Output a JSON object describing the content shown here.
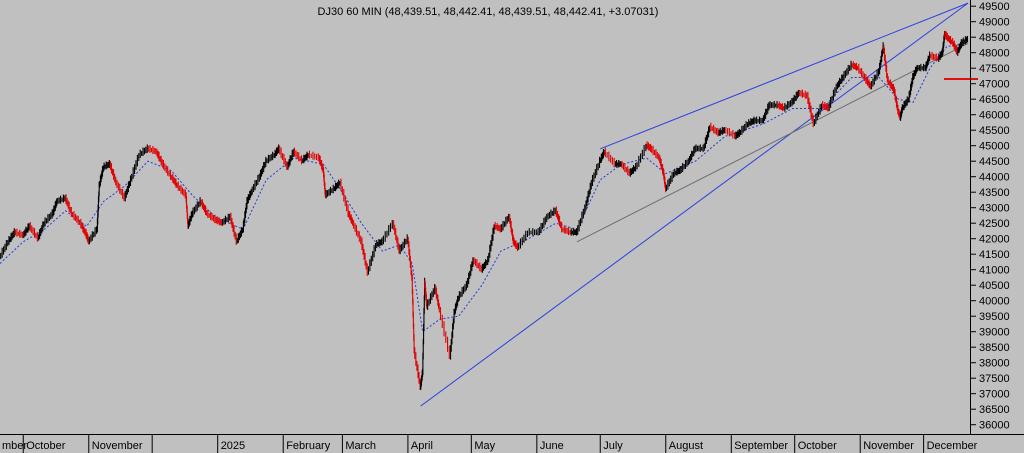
{
  "chart_data": {
    "type": "line",
    "title": "DJ30 60 MIN (48,439.51, 48,442.41, 48,439.51, 48,442.41, +3.07031)",
    "ylim": [
      35700,
      49700
    ],
    "y_ticks": [
      36000,
      36500,
      37000,
      37500,
      38000,
      38500,
      39000,
      39500,
      40000,
      40500,
      41000,
      41500,
      42000,
      42500,
      43000,
      43500,
      44000,
      44500,
      45000,
      45500,
      46000,
      46500,
      47000,
      47500,
      48000,
      48500,
      49000,
      49500
    ],
    "y_tick_labels": [
      "36000",
      "36500",
      "37000",
      "37500",
      "38000",
      "38500",
      "39000",
      "39500",
      "40000",
      "40500",
      "41000",
      "41500",
      "42000",
      "42500",
      "43000",
      "43500",
      "44000",
      "44500",
      "45000",
      "45500",
      "46000",
      "46500",
      "47000",
      "47500",
      "48000",
      "48500",
      "49000",
      "49500"
    ],
    "x_domain": [
      "2024-09-20",
      "2025-12-22"
    ],
    "x_ticks": [
      {
        "date": "2024-09-01",
        "label": "mber"
      },
      {
        "date": "2024-10-01",
        "label": "October"
      },
      {
        "date": "2024-11-01",
        "label": "November"
      },
      {
        "date": "2024-12-01",
        "label": ""
      },
      {
        "date": "2025-01-01",
        "label": "2025"
      },
      {
        "date": "2025-02-01",
        "label": "February"
      },
      {
        "date": "2025-03-01",
        "label": "March"
      },
      {
        "date": "2025-04-01",
        "label": "April"
      },
      {
        "date": "2025-05-01",
        "label": "May"
      },
      {
        "date": "2025-06-01",
        "label": "June"
      },
      {
        "date": "2025-07-01",
        "label": "July"
      },
      {
        "date": "2025-08-01",
        "label": "August"
      },
      {
        "date": "2025-09-01",
        "label": "September"
      },
      {
        "date": "2025-10-01",
        "label": "October"
      },
      {
        "date": "2025-11-01",
        "label": "November"
      },
      {
        "date": "2025-12-01",
        "label": "December"
      }
    ],
    "grid": false,
    "series": [
      {
        "style": "price",
        "color": "#000000",
        "data": [
          [
            "2024-09-20",
            41400
          ],
          [
            "2024-09-24",
            41900
          ],
          [
            "2024-09-27",
            42200
          ],
          [
            "2024-10-01",
            42100
          ],
          [
            "2024-10-04",
            42400
          ],
          [
            "2024-10-08",
            42000
          ],
          [
            "2024-10-11",
            42500
          ],
          [
            "2024-10-15",
            42800
          ],
          [
            "2024-10-17",
            43200
          ],
          [
            "2024-10-21",
            43300
          ],
          [
            "2024-10-24",
            42800
          ],
          [
            "2024-10-28",
            42500
          ],
          [
            "2024-10-31",
            42100
          ],
          [
            "2024-11-01",
            41900
          ],
          [
            "2024-11-05",
            42300
          ],
          [
            "2024-11-06",
            43700
          ],
          [
            "2024-11-08",
            44300
          ],
          [
            "2024-11-11",
            44400
          ],
          [
            "2024-11-14",
            43800
          ],
          [
            "2024-11-18",
            43300
          ],
          [
            "2024-11-21",
            43900
          ],
          [
            "2024-11-25",
            44700
          ],
          [
            "2024-11-29",
            44900
          ],
          [
            "2024-12-03",
            44800
          ],
          [
            "2024-12-06",
            44400
          ],
          [
            "2024-12-10",
            44000
          ],
          [
            "2024-12-13",
            43700
          ],
          [
            "2024-12-17",
            43400
          ],
          [
            "2024-12-18",
            42400
          ],
          [
            "2024-12-20",
            42800
          ],
          [
            "2024-12-24",
            43200
          ],
          [
            "2024-12-27",
            42800
          ],
          [
            "2024-12-31",
            42600
          ],
          [
            "2025-01-03",
            42500
          ],
          [
            "2025-01-07",
            42700
          ],
          [
            "2025-01-10",
            41900
          ],
          [
            "2025-01-13",
            42300
          ],
          [
            "2025-01-15",
            43200
          ],
          [
            "2025-01-17",
            43500
          ],
          [
            "2025-01-21",
            44000
          ],
          [
            "2025-01-24",
            44500
          ],
          [
            "2025-01-28",
            44700
          ],
          [
            "2025-01-30",
            44900
          ],
          [
            "2025-02-03",
            44300
          ],
          [
            "2025-02-06",
            44800
          ],
          [
            "2025-02-10",
            44500
          ],
          [
            "2025-02-13",
            44700
          ],
          [
            "2025-02-18",
            44600
          ],
          [
            "2025-02-20",
            44200
          ],
          [
            "2025-02-21",
            43400
          ],
          [
            "2025-02-25",
            43600
          ],
          [
            "2025-02-28",
            43800
          ],
          [
            "2025-03-04",
            42800
          ],
          [
            "2025-03-06",
            42500
          ],
          [
            "2025-03-10",
            41900
          ],
          [
            "2025-03-13",
            40900
          ],
          [
            "2025-03-17",
            41800
          ],
          [
            "2025-03-20",
            41900
          ],
          [
            "2025-03-25",
            42500
          ],
          [
            "2025-03-28",
            41600
          ],
          [
            "2025-04-01",
            42000
          ],
          [
            "2025-04-03",
            40700
          ],
          [
            "2025-04-04",
            38400
          ],
          [
            "2025-04-07",
            37200
          ],
          [
            "2025-04-08",
            37700
          ],
          [
            "2025-04-09",
            40600
          ],
          [
            "2025-04-10",
            39800
          ],
          [
            "2025-04-14",
            40400
          ],
          [
            "2025-04-16",
            39700
          ],
          [
            "2025-04-21",
            38200
          ],
          [
            "2025-04-23",
            39600
          ],
          [
            "2025-04-25",
            40100
          ],
          [
            "2025-04-29",
            40500
          ],
          [
            "2025-05-02",
            41300
          ],
          [
            "2025-05-06",
            41000
          ],
          [
            "2025-05-09",
            41300
          ],
          [
            "2025-05-12",
            42400
          ],
          [
            "2025-05-15",
            42300
          ],
          [
            "2025-05-19",
            42700
          ],
          [
            "2025-05-21",
            41900
          ],
          [
            "2025-05-23",
            41700
          ],
          [
            "2025-05-28",
            42200
          ],
          [
            "2025-06-02",
            42200
          ],
          [
            "2025-06-06",
            42700
          ],
          [
            "2025-06-10",
            42900
          ],
          [
            "2025-06-13",
            42300
          ],
          [
            "2025-06-17",
            42200
          ],
          [
            "2025-06-20",
            42200
          ],
          [
            "2025-06-24",
            43000
          ],
          [
            "2025-06-27",
            43800
          ],
          [
            "2025-07-01",
            44500
          ],
          [
            "2025-07-03",
            44800
          ],
          [
            "2025-07-08",
            44400
          ],
          [
            "2025-07-11",
            44400
          ],
          [
            "2025-07-15",
            44100
          ],
          [
            "2025-07-18",
            44300
          ],
          [
            "2025-07-23",
            45000
          ],
          [
            "2025-07-25",
            44900
          ],
          [
            "2025-07-29",
            44600
          ],
          [
            "2025-07-31",
            44100
          ],
          [
            "2025-08-01",
            43600
          ],
          [
            "2025-08-05",
            44100
          ],
          [
            "2025-08-08",
            44200
          ],
          [
            "2025-08-12",
            44500
          ],
          [
            "2025-08-15",
            44900
          ],
          [
            "2025-08-19",
            44900
          ],
          [
            "2025-08-22",
            45600
          ],
          [
            "2025-08-26",
            45400
          ],
          [
            "2025-08-29",
            45500
          ],
          [
            "2025-09-03",
            45300
          ],
          [
            "2025-09-05",
            45400
          ],
          [
            "2025-09-09",
            45700
          ],
          [
            "2025-09-12",
            45800
          ],
          [
            "2025-09-16",
            45800
          ],
          [
            "2025-09-19",
            46300
          ],
          [
            "2025-09-23",
            46300
          ],
          [
            "2025-09-26",
            46200
          ],
          [
            "2025-09-30",
            46400
          ],
          [
            "2025-10-03",
            46700
          ],
          [
            "2025-10-07",
            46600
          ],
          [
            "2025-10-10",
            45700
          ],
          [
            "2025-10-14",
            46300
          ],
          [
            "2025-10-17",
            46200
          ],
          [
            "2025-10-21",
            46900
          ],
          [
            "2025-10-24",
            47200
          ],
          [
            "2025-10-28",
            47600
          ],
          [
            "2025-10-31",
            47500
          ],
          [
            "2025-11-04",
            47100
          ],
          [
            "2025-11-06",
            46900
          ],
          [
            "2025-11-10",
            47400
          ],
          [
            "2025-11-12",
            48200
          ],
          [
            "2025-11-14",
            47100
          ],
          [
            "2025-11-17",
            46800
          ],
          [
            "2025-11-19",
            46100
          ],
          [
            "2025-11-20",
            45900
          ],
          [
            "2025-11-21",
            46200
          ],
          [
            "2025-11-24",
            46500
          ],
          [
            "2025-11-26",
            47200
          ],
          [
            "2025-11-28",
            47500
          ],
          [
            "2025-12-02",
            47500
          ],
          [
            "2025-12-04",
            47900
          ],
          [
            "2025-12-08",
            47800
          ],
          [
            "2025-12-10",
            48000
          ],
          [
            "2025-12-11",
            48600
          ],
          [
            "2025-12-12",
            48500
          ],
          [
            "2025-12-15",
            48300
          ],
          [
            "2025-12-17",
            48000
          ],
          [
            "2025-12-19",
            48300
          ],
          [
            "2025-12-22",
            48440
          ]
        ]
      },
      {
        "style": "moving-average",
        "color": "#1f3bd6",
        "data": [
          [
            "2024-09-20",
            41200
          ],
          [
            "2024-10-01",
            41900
          ],
          [
            "2024-10-11",
            42300
          ],
          [
            "2024-10-21",
            42900
          ],
          [
            "2024-10-31",
            42400
          ],
          [
            "2024-11-08",
            43200
          ],
          [
            "2024-11-18",
            43700
          ],
          [
            "2024-11-29",
            44500
          ],
          [
            "2024-12-10",
            44200
          ],
          [
            "2024-12-20",
            43400
          ],
          [
            "2024-12-31",
            42700
          ],
          [
            "2025-01-13",
            42300
          ],
          [
            "2025-01-24",
            43900
          ],
          [
            "2025-02-06",
            44600
          ],
          [
            "2025-02-20",
            44400
          ],
          [
            "2025-02-28",
            43600
          ],
          [
            "2025-03-10",
            42500
          ],
          [
            "2025-03-20",
            41600
          ],
          [
            "2025-03-28",
            41800
          ],
          [
            "2025-04-03",
            41200
          ],
          [
            "2025-04-08",
            39000
          ],
          [
            "2025-04-16",
            39400
          ],
          [
            "2025-04-25",
            39500
          ],
          [
            "2025-05-06",
            40500
          ],
          [
            "2025-05-15",
            41600
          ],
          [
            "2025-05-28",
            42000
          ],
          [
            "2025-06-10",
            42500
          ],
          [
            "2025-06-20",
            42300
          ],
          [
            "2025-07-01",
            43900
          ],
          [
            "2025-07-11",
            44400
          ],
          [
            "2025-07-23",
            44600
          ],
          [
            "2025-08-01",
            44100
          ],
          [
            "2025-08-15",
            44500
          ],
          [
            "2025-08-29",
            45300
          ],
          [
            "2025-09-16",
            45700
          ],
          [
            "2025-09-30",
            46200
          ],
          [
            "2025-10-14",
            46200
          ],
          [
            "2025-10-28",
            47200
          ],
          [
            "2025-11-10",
            47200
          ],
          [
            "2025-11-19",
            46500
          ],
          [
            "2025-11-26",
            46400
          ],
          [
            "2025-12-04",
            47500
          ],
          [
            "2025-12-12",
            48200
          ],
          [
            "2025-12-22",
            48300
          ]
        ]
      }
    ],
    "trendlines": [
      {
        "from": [
          "2025-04-07",
          36600
        ],
        "to": [
          "2025-12-22",
          49600
        ],
        "color": "#2b3fe0"
      },
      {
        "from": [
          "2025-07-01",
          44900
        ],
        "to": [
          "2025-12-22",
          49600
        ],
        "color": "#2b3fe0"
      },
      {
        "from": [
          "2025-06-20",
          41900
        ],
        "to": [
          "2025-12-22",
          48300
        ],
        "color": "#6e6e6e"
      }
    ],
    "marker": {
      "value": 47150,
      "color": "#e01010"
    }
  }
}
